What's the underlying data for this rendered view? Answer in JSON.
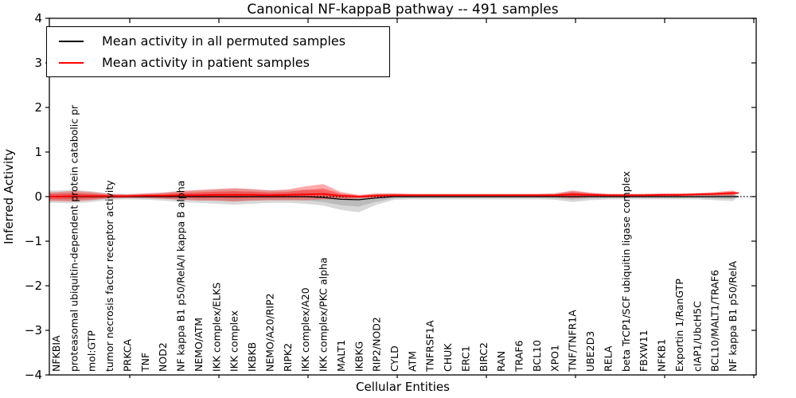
{
  "chart_data": {
    "type": "violin",
    "title": "Canonical NF-kappaB pathway -- 491 samples",
    "xlabel": "Cellular Entities",
    "ylabel": "Inferred Activity",
    "ylim": [
      -4,
      4
    ],
    "ytick_labels": [
      "−4",
      "−3",
      "−2",
      "−1",
      "0",
      "1",
      "2",
      "3",
      "4"
    ],
    "legend_position": "upper left",
    "grid": false,
    "zero_line": {
      "y": 0,
      "style": "dotted",
      "color": "#000000"
    },
    "categories": [
      "NFKBIA",
      "proteasomal ubiquitin-dependent protein catabolic pr",
      "mol:GTP",
      "tumor necrosis factor receptor activity",
      "PRKCA",
      "TNF",
      "NOD2",
      "NF kappa B1 p50/RelA/I kappa B alpha",
      "NEMO/ATM",
      "IKK complex/ELKS",
      "IKK complex",
      "IKBKB",
      "NEMO/A20/RIP2",
      "RIPK2",
      "IKK complex/A20",
      "IKK complex/PKC alpha",
      "MALT1",
      "IKBKG",
      "RIP2/NOD2",
      "CYLD",
      "ATM",
      "TNFRSF1A",
      "CHUK",
      "ERC1",
      "BIRC2",
      "RAN",
      "TRAF6",
      "BCL10",
      "XPO1",
      "TNF/TNFR1A",
      "UBE2D3",
      "RELA",
      "beta TrCP1/SCF ubiquitin ligase complex",
      "FBXW11",
      "NFKB1",
      "Exportin 1/RanGTP",
      "cIAP1/UbcH5C",
      "BCL10/MALT1/TRAF6",
      "NF kappa B1 p50/RelA"
    ],
    "series": [
      {
        "name": "Mean activity in all permuted samples",
        "role": "permuted",
        "line_color": "#000000",
        "fill_color": "#9e9e9e",
        "means": [
          0,
          0,
          0,
          0,
          0,
          0,
          0,
          0,
          0,
          0,
          0,
          0,
          0,
          0,
          0,
          -0.02,
          -0.06,
          -0.07,
          -0.03,
          0,
          0,
          0,
          0,
          0,
          0,
          0,
          0,
          0,
          0,
          0,
          0,
          0,
          0,
          0,
          0,
          0,
          0,
          0,
          0
        ],
        "width_up": [
          0.14,
          0.15,
          0.12,
          0.07,
          0.06,
          0.07,
          0.09,
          0.12,
          0.14,
          0.16,
          0.18,
          0.16,
          0.14,
          0.14,
          0.16,
          0.14,
          0.1,
          0.08,
          0.1,
          0.07,
          0.06,
          0.06,
          0.06,
          0.06,
          0.06,
          0.06,
          0.06,
          0.06,
          0.07,
          0.12,
          0.08,
          0.06,
          0.06,
          0.06,
          0.06,
          0.06,
          0.06,
          0.08,
          0.1
        ],
        "width_down": [
          0.14,
          0.15,
          0.12,
          0.07,
          0.06,
          0.07,
          0.09,
          0.12,
          0.14,
          0.16,
          0.18,
          0.16,
          0.14,
          0.14,
          0.16,
          0.18,
          0.24,
          0.28,
          0.15,
          0.07,
          0.06,
          0.06,
          0.06,
          0.06,
          0.06,
          0.06,
          0.06,
          0.06,
          0.07,
          0.12,
          0.08,
          0.06,
          0.06,
          0.06,
          0.06,
          0.06,
          0.06,
          0.08,
          0.1
        ]
      },
      {
        "name": "Mean activity in patient samples",
        "role": "patient",
        "line_color": "#ff0000",
        "fill_color": "#ff2a2a",
        "means": [
          0.0,
          0.01,
          0.01,
          0.01,
          0.01,
          0.02,
          0.02,
          0.03,
          0.03,
          0.04,
          0.04,
          0.04,
          0.03,
          0.04,
          0.05,
          0.06,
          0.02,
          0.0,
          0.02,
          0.03,
          0.03,
          0.03,
          0.03,
          0.03,
          0.03,
          0.03,
          0.03,
          0.03,
          0.03,
          0.05,
          0.04,
          0.03,
          0.03,
          0.03,
          0.04,
          0.04,
          0.05,
          0.06,
          0.08
        ],
        "width_up": [
          0.1,
          0.12,
          0.09,
          0.05,
          0.04,
          0.05,
          0.07,
          0.1,
          0.12,
          0.13,
          0.15,
          0.13,
          0.11,
          0.12,
          0.18,
          0.22,
          0.08,
          0.04,
          0.05,
          0.04,
          0.03,
          0.03,
          0.03,
          0.03,
          0.03,
          0.03,
          0.03,
          0.03,
          0.04,
          0.09,
          0.05,
          0.03,
          0.03,
          0.03,
          0.03,
          0.03,
          0.03,
          0.04,
          0.06
        ],
        "width_down": [
          0.1,
          0.12,
          0.09,
          0.05,
          0.04,
          0.05,
          0.07,
          0.1,
          0.12,
          0.13,
          0.15,
          0.13,
          0.11,
          0.12,
          0.13,
          0.12,
          0.08,
          0.04,
          0.05,
          0.04,
          0.03,
          0.03,
          0.03,
          0.03,
          0.03,
          0.03,
          0.03,
          0.03,
          0.04,
          0.09,
          0.05,
          0.03,
          0.03,
          0.03,
          0.03,
          0.03,
          0.03,
          0.04,
          0.06
        ]
      }
    ]
  }
}
